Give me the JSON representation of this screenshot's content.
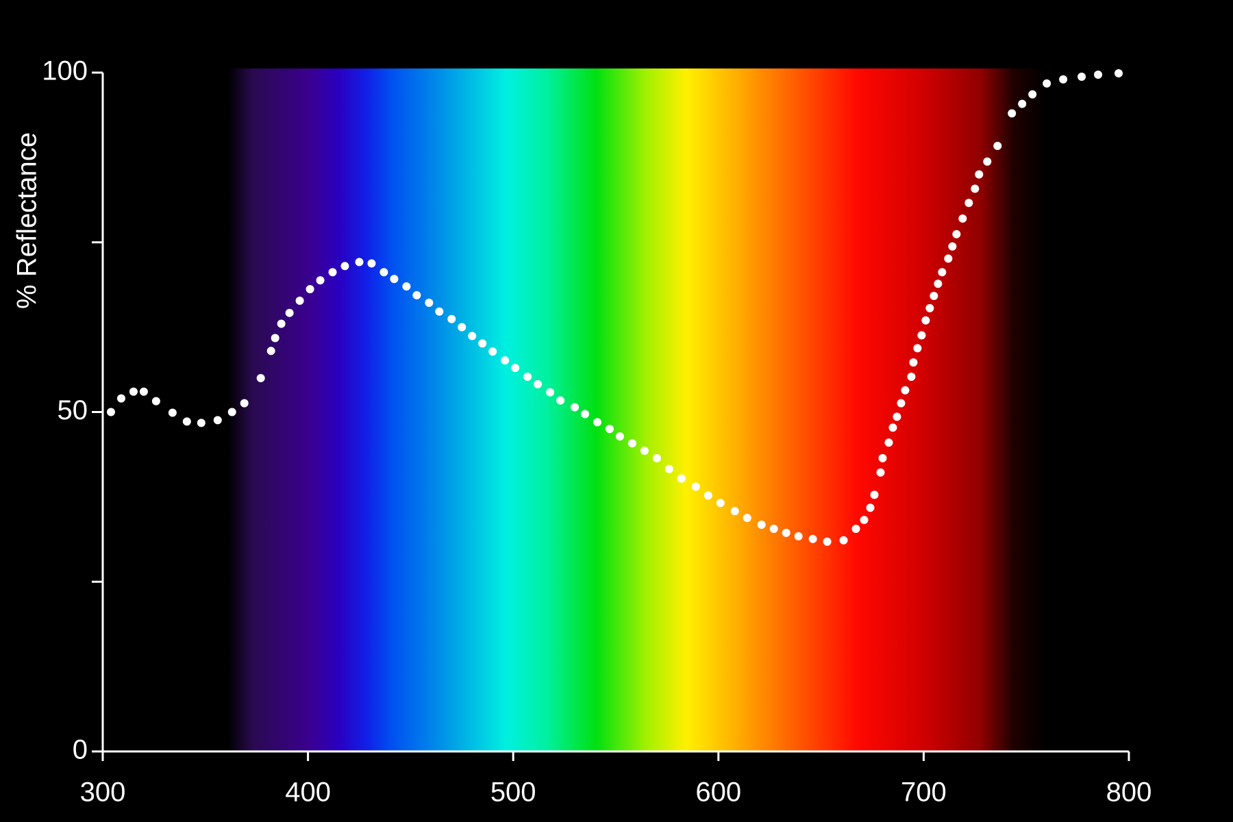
{
  "chart_data": {
    "type": "scatter",
    "y_label": "% Reflectance",
    "x": [
      304,
      309,
      315,
      320,
      326,
      334,
      341,
      348,
      356,
      363,
      369,
      377,
      382,
      384,
      387,
      391,
      396,
      401,
      406,
      412,
      418,
      425,
      431,
      437,
      442,
      448,
      453,
      459,
      464,
      470,
      475,
      480,
      485,
      490,
      496,
      501,
      507,
      512,
      518,
      523,
      530,
      535,
      541,
      547,
      552,
      558,
      564,
      570,
      576,
      582,
      589,
      595,
      601,
      608,
      614,
      621,
      627,
      633,
      639,
      646,
      653,
      661,
      667,
      671,
      674,
      676,
      679,
      680,
      683,
      685,
      687,
      689,
      691,
      694,
      695,
      697,
      699,
      701,
      703,
      705,
      707,
      709,
      712,
      714,
      716,
      719,
      722,
      725,
      727,
      731,
      736,
      743,
      748,
      753,
      760,
      768,
      777,
      785,
      795
    ],
    "values": [
      50,
      52,
      53,
      53,
      51.6,
      49.9,
      48.6,
      48.4,
      48.8,
      50,
      51.3,
      55,
      59,
      60.9,
      63,
      64.6,
      66.4,
      68.1,
      69.4,
      70.6,
      71.5,
      72.1,
      71.9,
      70.6,
      69.6,
      68.5,
      67.2,
      66.1,
      64.8,
      63.7,
      62.5,
      61.2,
      60.1,
      58.9,
      57.6,
      56.5,
      55.2,
      54.1,
      52.9,
      51.7,
      50.7,
      49.7,
      48.5,
      47.5,
      46.4,
      45.4,
      44.3,
      43.2,
      41.6,
      40.2,
      39,
      37.7,
      36.6,
      35.4,
      34.4,
      33.4,
      32.8,
      32.2,
      31.7,
      31.3,
      30.9,
      31.1,
      32.8,
      34.1,
      35.9,
      37.8,
      41.1,
      43.2,
      45.5,
      47.7,
      49.3,
      51.3,
      53.2,
      55.2,
      57.3,
      59.4,
      61.3,
      63.5,
      65.3,
      67.1,
      68.9,
      70.6,
      72.6,
      74.4,
      76.2,
      78.5,
      80.8,
      82.9,
      85,
      86.9,
      89.2,
      94,
      95.4,
      96.8,
      98.4,
      99,
      99.4,
      99.7,
      99.9
    ],
    "color": "#ffffff",
    "xlim": [
      300,
      800
    ],
    "xticks": [
      300,
      400,
      500,
      600,
      700,
      800
    ],
    "ylim": [
      0,
      100
    ],
    "yticks": [
      0,
      50,
      100
    ],
    "yminorticks": [
      25,
      75
    ]
  }
}
